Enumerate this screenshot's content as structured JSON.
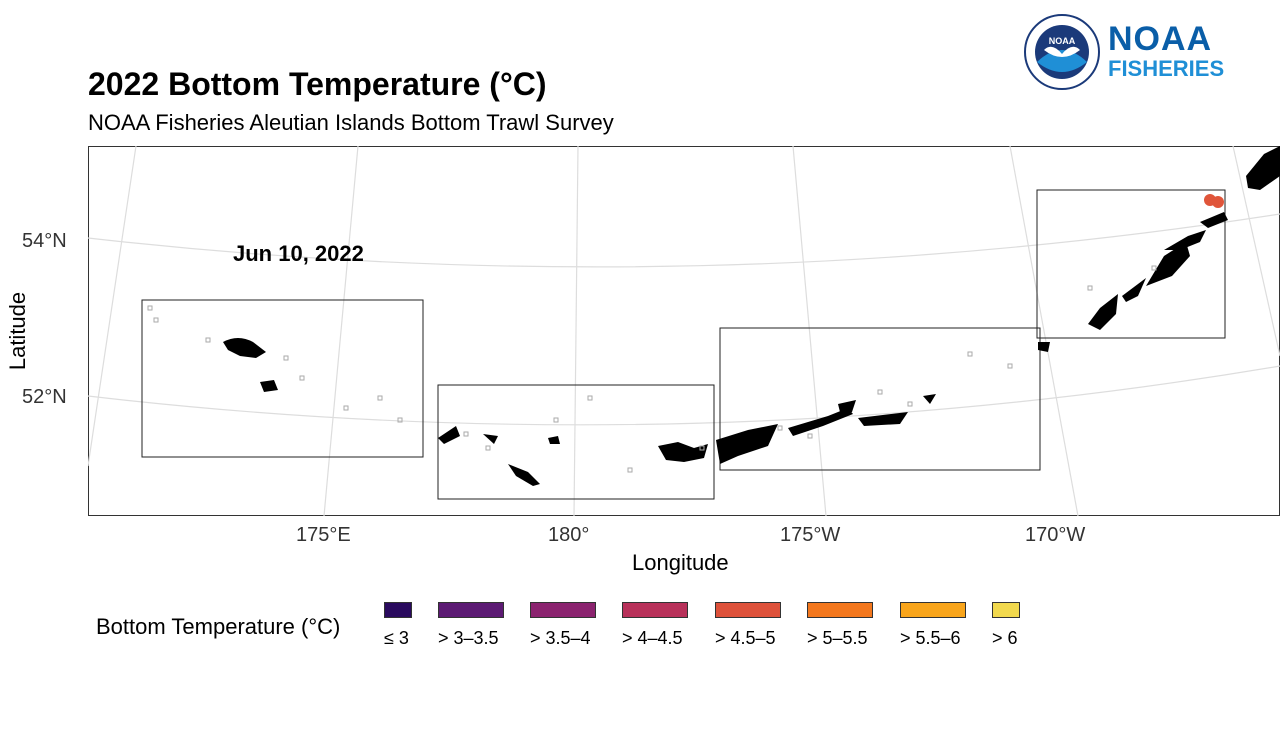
{
  "header": {
    "title": "2022 Bottom Temperature (°C)",
    "subtitle": "NOAA Fisheries Aleutian Islands Bottom Trawl Survey"
  },
  "logo": {
    "line1": "NOAA",
    "line2": "FISHERIES",
    "seal_text": "NOAA",
    "brand_color": "#0a5ea8"
  },
  "map": {
    "date_label": "Jun 10, 2022",
    "x_axis_title": "Longitude",
    "y_axis_title": "Latitude",
    "x_ticks": [
      "175°E",
      "180°",
      "175°W",
      "170°W"
    ],
    "y_ticks": [
      "54°N",
      "52°N"
    ],
    "land_color": "#000000",
    "grid_color": "#dddddd",
    "station_color": "#e0553a"
  },
  "legend": {
    "title": "Bottom Temperature (°C)",
    "items": [
      {
        "label": "≤ 3",
        "color": "#2a0a5e"
      },
      {
        "label": "> 3–3.5",
        "color": "#5c1a73"
      },
      {
        "label": "> 3.5–4",
        "color": "#8b236f"
      },
      {
        "label": "> 4–4.5",
        "color": "#b8315a"
      },
      {
        "label": "> 4.5–5",
        "color": "#dd513a"
      },
      {
        "label": "> 5–5.5",
        "color": "#f3771d"
      },
      {
        "label": "> 5.5–6",
        "color": "#f9a51b"
      },
      {
        "label": "> 6",
        "color": "#f2d94e"
      }
    ]
  }
}
